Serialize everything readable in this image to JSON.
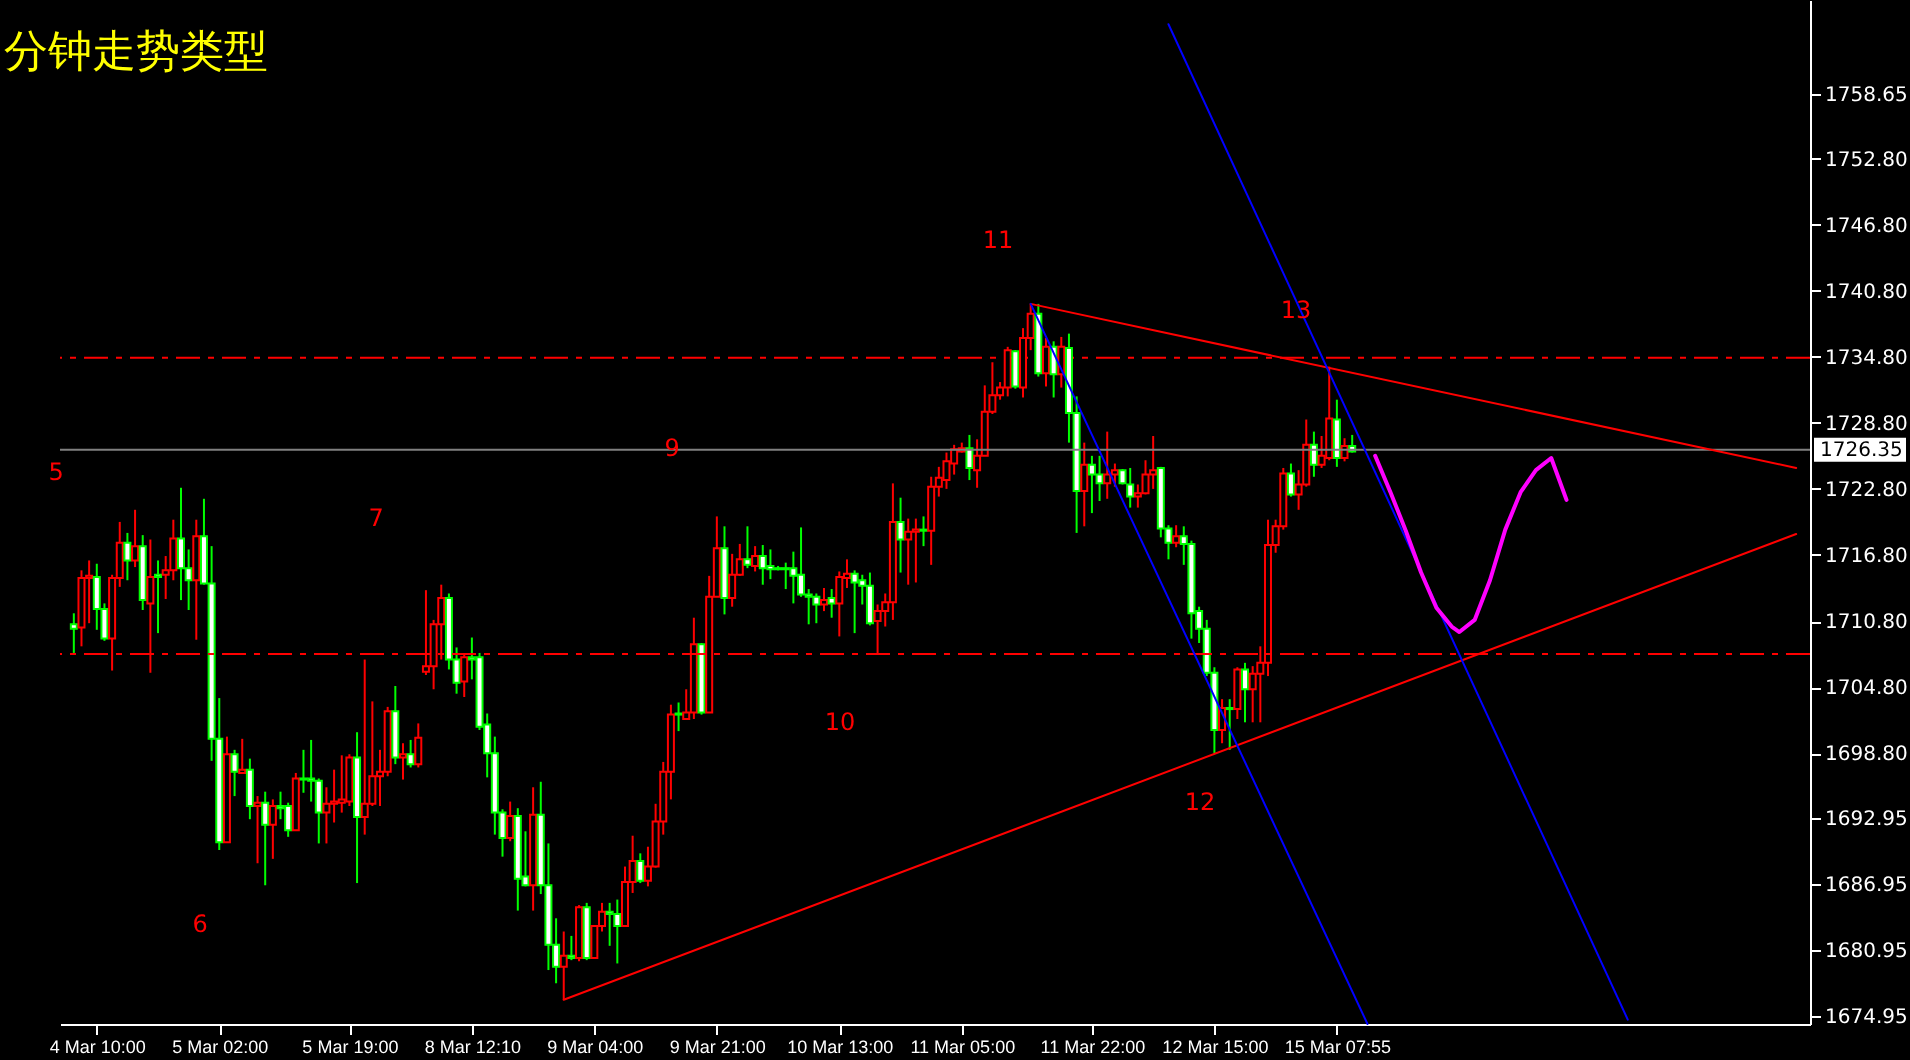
{
  "chart_data": {
    "type": "candlestick",
    "title": "分钟走势类型",
    "categories": [
      null,
      null,
      null,
      "4 Mar 10:00",
      null,
      null,
      null,
      null,
      null,
      null,
      null,
      null,
      null,
      null,
      null,
      null,
      null,
      null,
      null,
      "5 Mar 02:00",
      null,
      null,
      null,
      null,
      null,
      null,
      null,
      null,
      null,
      null,
      null,
      null,
      null,
      null,
      null,
      null,
      "5 Mar 19:00",
      null,
      null,
      null,
      null,
      null,
      null,
      null,
      null,
      null,
      null,
      null,
      null,
      null,
      null,
      null,
      "8 Mar 12:10",
      null,
      null,
      null,
      null,
      null,
      null,
      null,
      null,
      null,
      null,
      null,
      null,
      null,
      null,
      null,
      "9 Mar 04:00",
      null,
      null,
      null,
      null,
      null,
      null,
      null,
      null,
      null,
      null,
      null,
      null,
      null,
      null,
      null,
      "9 Mar 21:00",
      null,
      null,
      null,
      null,
      null,
      null,
      null,
      null,
      null,
      null,
      null,
      null,
      null,
      null,
      null,
      "10 Mar 13:00",
      null,
      null,
      null,
      null,
      null,
      null,
      null,
      null,
      null,
      null,
      null,
      null,
      null,
      null,
      null,
      "11 Mar 05:00",
      null,
      null,
      null,
      null,
      null,
      null,
      null,
      null,
      null,
      null,
      null,
      null,
      null,
      null,
      null,
      null,
      "11 Mar 22:00",
      null,
      null,
      null,
      null,
      null,
      null,
      null,
      null,
      null,
      null,
      null,
      null,
      null,
      null,
      null,
      "12 Mar 15:00",
      null,
      null,
      null,
      null,
      null,
      null,
      null,
      null,
      null,
      null,
      null,
      null,
      null,
      null,
      null,
      "15 Mar 07:55",
      null,
      null,
      null,
      null,
      null,
      null,
      null,
      null,
      null,
      null,
      null,
      null,
      null,
      null,
      null,
      null,
      null,
      null,
      null,
      null,
      null,
      null,
      null,
      null,
      null,
      null,
      null,
      null,
      null,
      null,
      null,
      null,
      null,
      null,
      null,
      null,
      null,
      null,
      null,
      null,
      null,
      null,
      null,
      null,
      null,
      null,
      null,
      null,
      null,
      null,
      null,
      null,
      null,
      null,
      null,
      null,
      null,
      null,
      null,
      null
    ],
    "ylim": [
      1674.2,
      1767.2
    ],
    "yticks": [
      {
        "value": 1674.95,
        "label": "1674.95"
      },
      {
        "value": 1680.95,
        "label": "1680.95"
      },
      {
        "value": 1686.95,
        "label": "1686.95"
      },
      {
        "value": 1692.95,
        "label": "1692.95"
      },
      {
        "value": 1698.8,
        "label": "1698.80"
      },
      {
        "value": 1704.8,
        "label": "1704.80"
      },
      {
        "value": 1710.8,
        "label": "1710.80"
      },
      {
        "value": 1716.8,
        "label": "1716.80"
      },
      {
        "value": 1722.8,
        "label": "1722.80"
      },
      {
        "value": 1728.8,
        "label": "1728.80"
      },
      {
        "value": 1734.8,
        "label": "1734.80"
      },
      {
        "value": 1740.8,
        "label": "1740.80"
      },
      {
        "value": 1746.8,
        "label": "1746.80"
      },
      {
        "value": 1752.8,
        "label": "1752.80"
      },
      {
        "value": 1758.65,
        "label": "1758.65"
      }
    ],
    "ohlc": [
      [
        1710.5,
        1711.5,
        1707.9,
        1710.1
      ],
      [
        1710.2,
        1715.4,
        1708.5,
        1714.7
      ],
      [
        1714.7,
        1716.3,
        1710.6,
        1714.9
      ],
      [
        1714.8,
        1716.0,
        1710.0,
        1711.9
      ],
      [
        1711.9,
        1712.4,
        1709.0,
        1709.2
      ],
      [
        1709.2,
        1715.0,
        1706.3,
        1714.7
      ],
      [
        1714.7,
        1719.8,
        1713.9,
        1717.9
      ],
      [
        1717.9,
        1718.8,
        1714.5,
        1716.3
      ],
      [
        1716.3,
        1720.9,
        1715.7,
        1717.6
      ],
      [
        1717.6,
        1718.6,
        1711.8,
        1712.7
      ],
      [
        1712.4,
        1718.2,
        1706.1,
        1714.8
      ],
      [
        1715.0,
        1716.3,
        1709.7,
        1714.8
      ],
      [
        1715.0,
        1716.7,
        1712.8,
        1715.4
      ],
      [
        1715.4,
        1720.0,
        1714.5,
        1718.3
      ],
      [
        1718.3,
        1722.9,
        1712.7,
        1715.6
      ],
      [
        1715.6,
        1717.3,
        1711.8,
        1714.5
      ],
      [
        1714.5,
        1720.0,
        1709.1,
        1718.5
      ],
      [
        1718.5,
        1721.9,
        1714.1,
        1714.2
      ],
      [
        1714.2,
        1717.6,
        1698.1,
        1700.1
      ],
      [
        1700.1,
        1703.8,
        1690.0,
        1690.7
      ],
      [
        1690.7,
        1700.3,
        1690.7,
        1698.7
      ],
      [
        1698.7,
        1699.1,
        1694.9,
        1697.1
      ],
      [
        1697.0,
        1700.1,
        1697.0,
        1697.3
      ],
      [
        1697.3,
        1698.3,
        1692.8,
        1694.0
      ],
      [
        1694.0,
        1694.9,
        1688.8,
        1694.3
      ],
      [
        1694.3,
        1695.3,
        1686.8,
        1692.3
      ],
      [
        1692.3,
        1694.6,
        1689.2,
        1694.0
      ],
      [
        1694.0,
        1695.3,
        1692.8,
        1693.8
      ],
      [
        1694.0,
        1694.3,
        1691.2,
        1691.8
      ],
      [
        1691.8,
        1697.0,
        1691.8,
        1696.5
      ],
      [
        1696.5,
        1699.1,
        1695.2,
        1696.4
      ],
      [
        1696.5,
        1700.0,
        1694.4,
        1696.3
      ],
      [
        1696.3,
        1696.5,
        1690.6,
        1693.4
      ],
      [
        1693.4,
        1695.7,
        1690.6,
        1694.2
      ],
      [
        1694.2,
        1697.3,
        1692.5,
        1694.4
      ],
      [
        1694.3,
        1698.6,
        1693.4,
        1694.6
      ],
      [
        1694.4,
        1698.7,
        1694.0,
        1698.4
      ],
      [
        1698.4,
        1700.7,
        1687.0,
        1693.0
      ],
      [
        1693.0,
        1707.3,
        1691.4,
        1694.2
      ],
      [
        1694.2,
        1703.5,
        1694.0,
        1696.7
      ],
      [
        1696.7,
        1699.1,
        1694.0,
        1697.1
      ],
      [
        1697.1,
        1703.0,
        1696.7,
        1702.6
      ],
      [
        1702.6,
        1704.9,
        1697.8,
        1698.4
      ],
      [
        1698.4,
        1699.7,
        1696.4,
        1698.7
      ],
      [
        1698.7,
        1700.0,
        1697.5,
        1697.8
      ],
      [
        1697.8,
        1701.5,
        1697.5,
        1700.2
      ],
      [
        1706.2,
        1713.6,
        1705.9,
        1706.7
      ],
      [
        1706.7,
        1710.9,
        1704.6,
        1710.5
      ],
      [
        1710.5,
        1714.1,
        1707.3,
        1712.9
      ],
      [
        1712.9,
        1713.3,
        1706.4,
        1707.3
      ],
      [
        1707.3,
        1708.4,
        1704.2,
        1705.2
      ],
      [
        1705.3,
        1707.8,
        1703.9,
        1707.5
      ],
      [
        1707.5,
        1709.3,
        1705.5,
        1707.3
      ],
      [
        1707.5,
        1707.9,
        1700.9,
        1701.2
      ],
      [
        1701.4,
        1702.4,
        1696.6,
        1698.8
      ],
      [
        1698.8,
        1700.3,
        1691.4,
        1693.4
      ],
      [
        1693.4,
        1693.7,
        1689.4,
        1691.1
      ],
      [
        1691.1,
        1694.4,
        1690.8,
        1693.1
      ],
      [
        1693.1,
        1693.8,
        1684.5,
        1687.4
      ],
      [
        1687.6,
        1691.7,
        1686.7,
        1686.8
      ],
      [
        1686.8,
        1695.7,
        1684.5,
        1693.2
      ],
      [
        1693.2,
        1696.2,
        1686.0,
        1686.8
      ],
      [
        1686.8,
        1690.6,
        1679.1,
        1681.4
      ],
      [
        1681.4,
        1683.8,
        1677.9,
        1679.4
      ],
      [
        1679.4,
        1682.6,
        1676.4,
        1680.4
      ],
      [
        1680.4,
        1682.2,
        1680.0,
        1680.2
      ],
      [
        1680.2,
        1685.0,
        1679.9,
        1684.8
      ],
      [
        1684.8,
        1685.2,
        1680.0,
        1680.2
      ],
      [
        1680.2,
        1683.1,
        1680.2,
        1683.1
      ],
      [
        1683.1,
        1685.2,
        1682.6,
        1684.4
      ],
      [
        1684.4,
        1685.2,
        1681.3,
        1684.2
      ],
      [
        1684.2,
        1685.5,
        1679.7,
        1683.1
      ],
      [
        1683.1,
        1688.5,
        1683.1,
        1687.1
      ],
      [
        1687.1,
        1691.3,
        1686.1,
        1689.0
      ],
      [
        1689.0,
        1689.7,
        1687.0,
        1687.2
      ],
      [
        1687.2,
        1690.3,
        1686.7,
        1688.5
      ],
      [
        1688.5,
        1694.2,
        1688.4,
        1692.6
      ],
      [
        1692.6,
        1698.0,
        1691.4,
        1697.1
      ],
      [
        1697.1,
        1703.2,
        1694.6,
        1702.3
      ],
      [
        1702.4,
        1703.4,
        1700.8,
        1702.3
      ],
      [
        1701.9,
        1704.6,
        1701.9,
        1702.5
      ],
      [
        1702.5,
        1711.1,
        1701.9,
        1708.7
      ],
      [
        1708.7,
        1708.8,
        1702.3,
        1702.5
      ],
      [
        1702.5,
        1714.9,
        1702.5,
        1713.0
      ],
      [
        1713.0,
        1720.3,
        1713.0,
        1717.4
      ],
      [
        1717.4,
        1719.4,
        1711.4,
        1712.9
      ],
      [
        1712.9,
        1716.9,
        1712.1,
        1715.0
      ],
      [
        1715.0,
        1717.8,
        1714.9,
        1716.4
      ],
      [
        1716.4,
        1719.4,
        1715.6,
        1715.9
      ],
      [
        1715.8,
        1717.6,
        1715.3,
        1716.7
      ],
      [
        1716.7,
        1717.7,
        1714.1,
        1715.6
      ],
      [
        1715.8,
        1717.3,
        1714.6,
        1715.5
      ],
      [
        1715.6,
        1715.8,
        1715.4,
        1715.5
      ],
      [
        1715.6,
        1716.1,
        1713.7,
        1715.5
      ],
      [
        1715.6,
        1717.1,
        1712.4,
        1714.9
      ],
      [
        1715.0,
        1719.3,
        1713.0,
        1713.2
      ],
      [
        1713.2,
        1713.7,
        1710.5,
        1713.0
      ],
      [
        1713.0,
        1713.3,
        1710.6,
        1712.3
      ],
      [
        1712.3,
        1713.8,
        1711.7,
        1712.7
      ],
      [
        1712.9,
        1713.7,
        1711.1,
        1712.4
      ],
      [
        1712.4,
        1715.3,
        1709.4,
        1714.8
      ],
      [
        1714.7,
        1716.4,
        1713.8,
        1715.1
      ],
      [
        1715.1,
        1715.4,
        1709.7,
        1714.3
      ],
      [
        1714.5,
        1715.0,
        1712.3,
        1714.0
      ],
      [
        1714.0,
        1715.2,
        1710.4,
        1710.6
      ],
      [
        1710.8,
        1712.3,
        1707.8,
        1711.7
      ],
      [
        1711.7,
        1713.3,
        1710.3,
        1712.5
      ],
      [
        1712.5,
        1723.3,
        1710.9,
        1719.8
      ],
      [
        1719.8,
        1722.0,
        1715.2,
        1718.2
      ],
      [
        1718.2,
        1720.1,
        1714.1,
        1718.9
      ],
      [
        1718.9,
        1720.1,
        1714.3,
        1719.1
      ],
      [
        1719.1,
        1720.3,
        1717.6,
        1719.0
      ],
      [
        1719.0,
        1723.9,
        1715.9,
        1723.0
      ],
      [
        1723.0,
        1724.8,
        1722.1,
        1723.8
      ],
      [
        1723.6,
        1726.1,
        1722.8,
        1725.3
      ],
      [
        1725.1,
        1726.8,
        1724.1,
        1726.4
      ],
      [
        1726.2,
        1727.0,
        1726.1,
        1726.5
      ],
      [
        1726.5,
        1727.7,
        1723.6,
        1724.7
      ],
      [
        1724.5,
        1727.3,
        1722.9,
        1725.8
      ],
      [
        1725.8,
        1732.2,
        1725.8,
        1729.8
      ],
      [
        1729.8,
        1734.3,
        1729.6,
        1731.3
      ],
      [
        1731.3,
        1732.5,
        1730.9,
        1732.0
      ],
      [
        1732.0,
        1735.7,
        1731.2,
        1735.4
      ],
      [
        1735.3,
        1735.4,
        1731.9,
        1732.1
      ],
      [
        1732.0,
        1737.4,
        1731.1,
        1736.5
      ],
      [
        1736.5,
        1739.6,
        1735.4,
        1738.7
      ],
      [
        1738.7,
        1739.6,
        1733.0,
        1733.3
      ],
      [
        1733.3,
        1736.5,
        1732.1,
        1735.7
      ],
      [
        1735.7,
        1736.2,
        1731.1,
        1733.2
      ],
      [
        1733.2,
        1736.6,
        1732.0,
        1735.7
      ],
      [
        1735.6,
        1736.9,
        1727.0,
        1729.7
      ],
      [
        1729.7,
        1731.2,
        1718.8,
        1722.6
      ],
      [
        1722.6,
        1727.0,
        1719.4,
        1725.0
      ],
      [
        1725.0,
        1725.8,
        1720.6,
        1724.1
      ],
      [
        1724.1,
        1725.8,
        1721.7,
        1723.3
      ],
      [
        1723.3,
        1728.0,
        1721.9,
        1724.1
      ],
      [
        1724.1,
        1725.1,
        1723.0,
        1724.5
      ],
      [
        1724.5,
        1724.6,
        1723.2,
        1723.3
      ],
      [
        1723.2,
        1724.7,
        1721.1,
        1722.1
      ],
      [
        1722.1,
        1723.2,
        1721.1,
        1722.4
      ],
      [
        1722.4,
        1725.4,
        1722.3,
        1724.1
      ],
      [
        1724.1,
        1727.6,
        1722.8,
        1724.5
      ],
      [
        1724.7,
        1724.8,
        1718.4,
        1719.2
      ],
      [
        1719.2,
        1719.5,
        1716.4,
        1717.9
      ],
      [
        1717.9,
        1719.5,
        1717.5,
        1718.5
      ],
      [
        1718.5,
        1719.4,
        1715.9,
        1717.8
      ],
      [
        1717.8,
        1718.1,
        1709.2,
        1711.5
      ],
      [
        1711.7,
        1712.1,
        1708.8,
        1710.1
      ],
      [
        1710.1,
        1710.9,
        1705.8,
        1706.1
      ],
      [
        1706.1,
        1706.6,
        1698.8,
        1700.9
      ],
      [
        1700.9,
        1703.7,
        1699.7,
        1702.9
      ],
      [
        1702.9,
        1703.7,
        1699.1,
        1702.8
      ],
      [
        1702.8,
        1706.6,
        1701.9,
        1706.4
      ],
      [
        1706.4,
        1707.0,
        1701.6,
        1704.6
      ],
      [
        1704.6,
        1706.7,
        1701.6,
        1706.0
      ],
      [
        1706.0,
        1708.5,
        1701.6,
        1707.0
      ],
      [
        1707.0,
        1720.0,
        1705.8,
        1717.7
      ],
      [
        1717.7,
        1720.0,
        1717.0,
        1719.4
      ],
      [
        1719.4,
        1724.7,
        1719.1,
        1724.2
      ],
      [
        1724.2,
        1725.1,
        1722.1,
        1722.3
      ],
      [
        1722.3,
        1724.5,
        1720.9,
        1723.2
      ],
      [
        1723.2,
        1729.1,
        1723.0,
        1726.8
      ],
      [
        1726.8,
        1728.0,
        1723.9,
        1725.0
      ],
      [
        1725.0,
        1727.6,
        1724.7,
        1725.8
      ],
      [
        1725.6,
        1733.9,
        1725.4,
        1729.2
      ],
      [
        1729.1,
        1730.9,
        1724.8,
        1725.6
      ],
      [
        1725.6,
        1727.4,
        1725.3,
        1726.7
      ],
      [
        1726.7,
        1727.7,
        1726.1,
        1726.2
      ],
      null,
      null,
      null,
      null,
      null,
      null,
      null,
      null,
      null,
      null,
      null,
      null,
      null,
      null,
      null,
      null,
      null,
      null,
      null,
      null,
      null,
      null,
      null,
      null,
      null,
      null,
      null,
      null,
      null,
      null,
      null,
      null,
      null,
      null,
      null,
      null,
      null,
      null,
      null,
      null,
      null,
      null,
      null,
      null,
      null,
      null,
      null,
      null,
      null,
      null,
      null,
      null,
      null,
      null,
      null,
      null,
      null,
      null
    ],
    "series": [
      {
        "type": "line",
        "color": "#ff0000",
        "values": [
          null,
          null,
          null,
          null,
          null,
          null,
          null,
          null,
          null,
          null,
          null,
          null,
          null,
          null,
          null,
          null,
          null,
          null,
          null,
          null,
          null,
          null,
          null,
          null,
          null,
          null,
          null,
          null,
          null,
          null,
          null,
          null,
          null,
          null,
          null,
          null,
          null,
          null,
          null,
          null,
          null,
          null,
          null,
          null,
          null,
          null,
          null,
          null,
          null,
          null,
          null,
          null,
          null,
          null,
          null,
          null,
          null,
          null,
          null,
          null,
          null,
          null,
          null,
          null,
          1676.4,
          null,
          null,
          null,
          null,
          null,
          null,
          null,
          null,
          null,
          null,
          null,
          null,
          null,
          null,
          null,
          null,
          null,
          null,
          null,
          null,
          null,
          null,
          null,
          null,
          null,
          null,
          null,
          null,
          null,
          null,
          null,
          null,
          null,
          null,
          null,
          null,
          null,
          null,
          null,
          null,
          null,
          null,
          null,
          null,
          null,
          null,
          null,
          null,
          null,
          null,
          null,
          null,
          null,
          null,
          null,
          null,
          null,
          null,
          null,
          null,
          null,
          null,
          null,
          null,
          null,
          null,
          null,
          null,
          null,
          null,
          null,
          null,
          null,
          null,
          null,
          null,
          null,
          null,
          null,
          null,
          null,
          null,
          null,
          null,
          null,
          null,
          null,
          null,
          null,
          null,
          null,
          null,
          null,
          null,
          null,
          null,
          null,
          null,
          null,
          null,
          null,
          null,
          null,
          null,
          null,
          null,
          null,
          null,
          null,
          null,
          null,
          null,
          null,
          null,
          null,
          null,
          null,
          null,
          null,
          null,
          null,
          null,
          null,
          null,
          null,
          null,
          null,
          null,
          null,
          null,
          null,
          null,
          null,
          null,
          null,
          null,
          null,
          null,
          null,
          null,
          null,
          null,
          null,
          null,
          null,
          null,
          null,
          null,
          null,
          null,
          null,
          null,
          null,
          null,
          null,
          null,
          null,
          null,
          null,
          null,
          1718.7
        ]
      },
      {
        "type": "line",
        "color": "#ff0000",
        "values": [
          null,
          null,
          null,
          null,
          null,
          null,
          null,
          null,
          null,
          null,
          null,
          null,
          null,
          null,
          null,
          null,
          null,
          null,
          null,
          null,
          null,
          null,
          null,
          null,
          null,
          null,
          null,
          null,
          null,
          null,
          null,
          null,
          null,
          null,
          null,
          null,
          null,
          null,
          null,
          null,
          null,
          null,
          null,
          null,
          null,
          null,
          null,
          null,
          null,
          null,
          null,
          null,
          null,
          null,
          null,
          null,
          null,
          null,
          null,
          null,
          null,
          null,
          null,
          null,
          null,
          null,
          null,
          null,
          null,
          null,
          null,
          null,
          null,
          null,
          null,
          null,
          null,
          null,
          null,
          null,
          null,
          null,
          null,
          null,
          null,
          null,
          null,
          null,
          null,
          null,
          null,
          null,
          null,
          null,
          null,
          null,
          null,
          null,
          null,
          null,
          null,
          null,
          null,
          null,
          null,
          null,
          null,
          null,
          null,
          null,
          null,
          null,
          null,
          null,
          null,
          null,
          null,
          null,
          null,
          null,
          null,
          null,
          null,
          null,
          null,
          1739.6,
          null,
          null,
          null,
          null,
          null,
          null,
          null,
          null,
          null,
          null,
          null,
          null,
          null,
          null,
          null,
          null,
          null,
          null,
          null,
          null,
          null,
          null,
          null,
          null,
          null,
          null,
          null,
          null,
          null,
          null,
          null,
          null,
          null,
          null,
          null,
          null,
          null,
          null,
          null,
          null,
          null,
          null,
          null,
          null,
          null,
          null,
          null,
          null,
          null,
          null,
          null,
          null,
          null,
          null,
          null,
          null,
          null,
          null,
          null,
          null,
          null,
          null,
          null,
          null,
          null,
          null,
          null,
          null,
          null,
          null,
          null,
          null,
          null,
          null,
          null,
          null,
          null,
          null,
          null,
          null,
          null,
          null,
          null,
          null,
          null,
          null,
          null,
          null,
          null,
          null,
          null,
          null,
          null,
          null,
          null,
          null,
          null,
          null,
          null,
          1724.7
        ]
      },
      {
        "type": "line",
        "color": "#0000ff",
        "values": [
          null,
          null,
          null,
          null,
          null,
          null,
          null,
          null,
          null,
          null,
          null,
          null,
          null,
          null,
          null,
          null,
          null,
          null,
          null,
          null,
          null,
          null,
          null,
          null,
          null,
          null,
          null,
          null,
          null,
          null,
          null,
          null,
          null,
          null,
          null,
          null,
          null,
          null,
          null,
          null,
          null,
          null,
          null,
          null,
          null,
          null,
          null,
          null,
          null,
          null,
          null,
          null,
          null,
          null,
          null,
          null,
          null,
          null,
          null,
          null,
          null,
          null,
          null,
          null,
          null,
          null,
          null,
          null,
          null,
          null,
          null,
          null,
          null,
          null,
          null,
          null,
          null,
          null,
          null,
          null,
          null,
          null,
          null,
          null,
          null,
          null,
          null,
          null,
          null,
          null,
          null,
          null,
          null,
          null,
          null,
          null,
          null,
          null,
          null,
          null,
          null,
          null,
          null,
          null,
          null,
          null,
          null,
          null,
          null,
          null,
          null,
          null,
          null,
          null,
          null,
          null,
          null,
          null,
          null,
          null,
          null,
          null,
          null,
          null,
          null,
          1739.6,
          null,
          null,
          null,
          null,
          null,
          null,
          null,
          null,
          null,
          null,
          null,
          null,
          null,
          null,
          null,
          null,
          null,
          null,
          null,
          null,
          null,
          null,
          null,
          null,
          null,
          null,
          null,
          null,
          null,
          null,
          null,
          null,
          null,
          null,
          null,
          null,
          null,
          null,
          null,
          null,
          null,
          null,
          null,
          1674.2,
          null,
          null,
          null,
          null,
          null,
          null,
          null,
          null,
          null,
          null,
          null,
          null,
          null,
          null,
          null,
          null,
          null,
          null,
          null,
          null,
          null,
          null,
          null,
          null,
          null,
          null,
          null,
          null,
          null,
          null,
          null,
          null,
          null,
          null,
          null,
          null,
          null,
          null,
          null,
          null,
          null,
          null,
          null,
          null,
          null,
          null,
          null,
          null,
          null,
          null,
          null,
          null,
          null,
          null,
          null,
          null
        ]
      },
      {
        "type": "line",
        "color": "#0000ff",
        "values": [
          null,
          null,
          null,
          null,
          null,
          null,
          null,
          null,
          null,
          null,
          null,
          null,
          null,
          null,
          null,
          null,
          null,
          null,
          null,
          null,
          null,
          null,
          null,
          null,
          null,
          null,
          null,
          null,
          null,
          null,
          null,
          null,
          null,
          null,
          null,
          null,
          null,
          null,
          null,
          null,
          null,
          null,
          null,
          null,
          null,
          null,
          null,
          null,
          null,
          null,
          null,
          null,
          null,
          null,
          null,
          null,
          null,
          null,
          null,
          null,
          null,
          null,
          null,
          null,
          null,
          null,
          null,
          null,
          null,
          null,
          null,
          null,
          null,
          null,
          null,
          null,
          null,
          null,
          null,
          null,
          null,
          null,
          null,
          null,
          null,
          null,
          null,
          null,
          null,
          null,
          null,
          null,
          null,
          null,
          null,
          null,
          null,
          null,
          null,
          null,
          null,
          null,
          null,
          null,
          null,
          null,
          null,
          null,
          null,
          null,
          null,
          null,
          null,
          null,
          null,
          null,
          null,
          null,
          null,
          null,
          null,
          null,
          null,
          null,
          null,
          null,
          null,
          null,
          null,
          null,
          null,
          null,
          null,
          null,
          null,
          null,
          null,
          null,
          null,
          null,
          null,
          null,
          null,
          1765.0,
          null,
          null,
          null,
          null,
          null,
          null,
          null,
          null,
          null,
          null,
          null,
          null,
          null,
          null,
          null,
          null,
          null,
          null,
          null,
          null,
          null,
          null,
          null,
          null,
          null,
          null,
          null,
          null,
          null,
          null,
          null,
          null,
          null,
          null,
          null,
          null,
          null,
          null,
          null,
          null,
          null,
          null,
          null,
          null,
          null,
          null,
          null,
          null,
          null,
          null,
          null,
          null,
          null,
          null,
          null,
          null,
          null,
          null,
          null,
          1674.6,
          null,
          null,
          null,
          null,
          null,
          null,
          null,
          null,
          null,
          null,
          null,
          null,
          null,
          null,
          null,
          null,
          null,
          null,
          null,
          null,
          null,
          null
        ]
      },
      {
        "type": "line",
        "color": "#ff00ff",
        "values": [
          null,
          null,
          null,
          null,
          null,
          null,
          null,
          null,
          null,
          null,
          null,
          null,
          null,
          null,
          null,
          null,
          null,
          null,
          null,
          null,
          null,
          null,
          null,
          null,
          null,
          null,
          null,
          null,
          null,
          null,
          null,
          null,
          null,
          null,
          null,
          null,
          null,
          null,
          null,
          null,
          null,
          null,
          null,
          null,
          null,
          null,
          null,
          null,
          null,
          null,
          null,
          null,
          null,
          null,
          null,
          null,
          null,
          null,
          null,
          null,
          null,
          null,
          null,
          null,
          null,
          null,
          null,
          null,
          null,
          null,
          null,
          null,
          null,
          null,
          null,
          null,
          null,
          null,
          null,
          null,
          null,
          null,
          null,
          null,
          null,
          null,
          null,
          null,
          null,
          null,
          null,
          null,
          null,
          null,
          null,
          null,
          null,
          null,
          null,
          null,
          null,
          null,
          null,
          null,
          null,
          null,
          null,
          null,
          null,
          null,
          null,
          null,
          null,
          null,
          null,
          null,
          null,
          null,
          null,
          null,
          null,
          null,
          null,
          null,
          null,
          null,
          null,
          null,
          null,
          null,
          null,
          null,
          null,
          null,
          null,
          null,
          null,
          null,
          null,
          null,
          null,
          null,
          null,
          null,
          null,
          null,
          null,
          null,
          null,
          null,
          null,
          null,
          null,
          null,
          null,
          null,
          null,
          null,
          null,
          null,
          null,
          null,
          null,
          null,
          null,
          null,
          null,
          null,
          null,
          null,
          1725.8,
          null,
          1722.5,
          null,
          1719.0,
          null,
          1715.2,
          null,
          1712.0,
          null,
          1710.3,
          1709.8,
          null,
          1710.9,
          null,
          1714.5,
          null,
          1719.1,
          null,
          1722.5,
          null,
          1724.5,
          null,
          1725.6,
          null,
          1721.8,
          null,
          null,
          null,
          null,
          null,
          null,
          null,
          null,
          null,
          null,
          null,
          null,
          null,
          null,
          null,
          null,
          null,
          null,
          null,
          null,
          null,
          null,
          null,
          null,
          null,
          null,
          null,
          null,
          null,
          null
        ]
      }
    ],
    "ref_lines": [
      {
        "axis": "y",
        "value": 1734.7,
        "color": "#ff0000",
        "line_style": "dashed"
      },
      {
        "axis": "y",
        "value": 1707.8,
        "color": "#ff0000",
        "line_style": "dashed"
      },
      {
        "axis": "y",
        "value": 1726.35,
        "label": "1726.35",
        "color": "#808080",
        "line_style": "solid"
      }
    ],
    "annotations": [
      "5",
      "6",
      "7",
      "9",
      "10",
      "11",
      "12",
      "13"
    ],
    "grid": false
  }
}
